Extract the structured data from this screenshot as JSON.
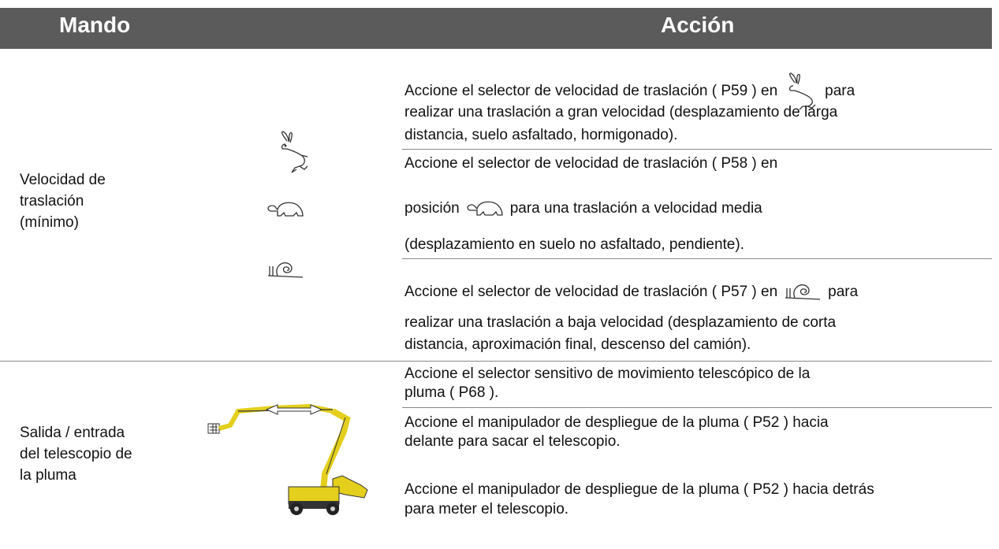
{
  "header": {
    "col1": "Mando",
    "col2": "Acción"
  },
  "rows": [
    {
      "label": [
        "Velocidad de",
        "traslación",
        "(mínimo)"
      ],
      "actions": [
        {
          "lines": [
            {
              "before": "Accione el selector de velocidad de traslación ( P59 ) en",
              "after": "para"
            },
            "realizar una traslación a gran velocidad (desplazamiento de larga",
            "distancia, suelo asfaltado, hormigonado)."
          ]
        },
        {
          "lines": [
            "Accione el selector de velocidad de traslación ( P58 ) en",
            {
              "before": "posición",
              "after": "para una traslación a velocidad media"
            },
            "(desplazamiento en suelo no asfaltado, pendiente)."
          ]
        },
        {
          "lines": [
            {
              "before": "Accione el selector de velocidad de traslación ( P57 ) en",
              "after": "para"
            },
            "realizar una traslación a baja velocidad (desplazamiento de corta",
            "distancia, aproximación final, descenso del camión)."
          ]
        }
      ]
    },
    {
      "label": [
        "Salida / entrada",
        "del telescopio de",
        "la pluma"
      ],
      "actions": [
        {
          "lines": [
            "Accione el selector sensitivo de movimiento telescópico de la",
            "pluma ( P68 )."
          ]
        },
        {
          "lines": [
            "Accione el manipulador de despliegue de la pluma ( P52 ) hacia",
            "delante para sacar el telescopio."
          ]
        },
        {
          "lines": [
            "Accione el manipulador de despliegue de la pluma ( P52 ) hacia detrás",
            "para meter el telescopio."
          ]
        }
      ]
    }
  ]
}
